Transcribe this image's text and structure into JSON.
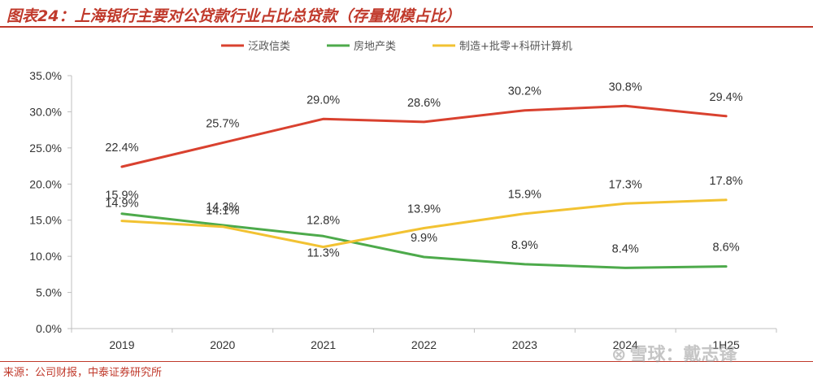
{
  "title": "图表24：上海银行主要对公贷款行业占比总贷款（存量规模占比）",
  "source": "来源：公司财报，中泰证券研究所",
  "watermark": "雪球：戴志锋",
  "colors": {
    "accent": "#c0392b",
    "series": [
      "#d9412f",
      "#4daa4b",
      "#f2c232"
    ]
  },
  "chart_data": {
    "type": "line",
    "title": "",
    "xlabel": "",
    "ylabel": "",
    "ylim": [
      0,
      35
    ],
    "yticks": [
      "0.0%",
      "5.0%",
      "10.0%",
      "15.0%",
      "20.0%",
      "25.0%",
      "30.0%",
      "35.0%"
    ],
    "categories": [
      "2019",
      "2020",
      "2021",
      "2022",
      "2023",
      "2024",
      "1H25"
    ],
    "legend_position": "top-center",
    "series": [
      {
        "name": "泛政信类",
        "values": [
          22.4,
          25.7,
          29.0,
          28.6,
          30.2,
          30.8,
          29.4
        ],
        "labels": [
          "22.4%",
          "25.7%",
          "29.0%",
          "28.6%",
          "30.2%",
          "30.8%",
          "29.4%"
        ]
      },
      {
        "name": "房地产类",
        "values": [
          15.9,
          14.3,
          12.8,
          9.9,
          8.9,
          8.4,
          8.6
        ],
        "labels": [
          "15.9%",
          "14.3%",
          "12.8%",
          "9.9%",
          "8.9%",
          "8.4%",
          "8.6%"
        ]
      },
      {
        "name": "制造+批零+科研计算机",
        "values": [
          14.9,
          14.1,
          11.3,
          13.9,
          15.9,
          17.3,
          17.8
        ],
        "labels": [
          "14.9%",
          "14.1%",
          "11.3%",
          "13.9%",
          "15.9%",
          "17.3%",
          "17.8%"
        ]
      }
    ]
  }
}
